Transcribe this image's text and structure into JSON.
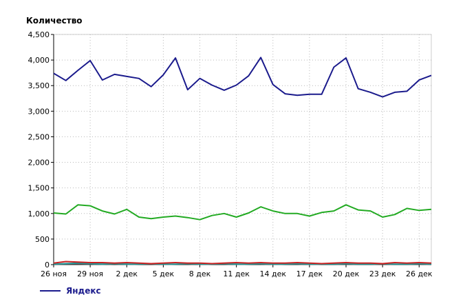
{
  "chart_data": {
    "type": "line",
    "title": "",
    "ylabel": "Количество",
    "xlabel": "",
    "ylim": [
      0,
      4500
    ],
    "yticks": [
      "0",
      "500",
      "1,000",
      "1,500",
      "2,000",
      "2,500",
      "3,000",
      "3,500",
      "4,000",
      "4,500"
    ],
    "ytick_values": [
      0,
      500,
      1000,
      1500,
      2000,
      2500,
      3000,
      3500,
      4000,
      4500
    ],
    "x": [
      "26 ноя",
      "27 ноя",
      "28 ноя",
      "29 ноя",
      "30 ноя",
      "1 дек",
      "2 дек",
      "3 дек",
      "4 дек",
      "5 дек",
      "6 дек",
      "7 дек",
      "8 дек",
      "9 дек",
      "10 дек",
      "11 дек",
      "12 дек",
      "13 дек",
      "14 дек",
      "15 дек",
      "16 дек",
      "17 дек",
      "18 дек",
      "19 дек",
      "20 дек",
      "21 дек",
      "22 дек",
      "23 дек",
      "24 дек",
      "25 дек",
      "26 дек",
      "27 дек"
    ],
    "xtick_labels": [
      "26 ноя",
      "29 ноя",
      "2 дек",
      "5 дек",
      "8 дек",
      "11 дек",
      "14 дек",
      "17 дек",
      "20 дек",
      "23 дек",
      "26 дек"
    ],
    "xtick_indices": [
      0,
      3,
      6,
      9,
      12,
      15,
      18,
      21,
      24,
      27,
      30
    ],
    "grid": true,
    "legend_position": "bottom-left",
    "series": [
      {
        "name": "Яндекс",
        "color": "#1a1a8c",
        "values": [
          3740,
          3600,
          3800,
          3990,
          3610,
          3720,
          3680,
          3640,
          3480,
          3710,
          4040,
          3420,
          3640,
          3510,
          3410,
          3510,
          3690,
          4050,
          3520,
          3340,
          3310,
          3330,
          3330,
          3860,
          4040,
          3440,
          3370,
          3280,
          3370,
          3390,
          3610,
          3700
        ]
      },
      {
        "name": "",
        "color": "#22aa22",
        "values": [
          1010,
          990,
          1170,
          1150,
          1050,
          990,
          1080,
          930,
          900,
          930,
          950,
          920,
          880,
          960,
          1000,
          930,
          1010,
          1130,
          1050,
          1000,
          1000,
          950,
          1020,
          1050,
          1170,
          1070,
          1050,
          930,
          980,
          1100,
          1060,
          1080
        ]
      },
      {
        "name": "",
        "color": "#cc2222",
        "values": [
          30,
          60,
          50,
          40,
          40,
          30,
          40,
          30,
          20,
          30,
          40,
          30,
          30,
          20,
          30,
          40,
          30,
          40,
          30,
          30,
          40,
          30,
          20,
          30,
          40,
          30,
          30,
          20,
          40,
          30,
          40,
          30
        ]
      },
      {
        "name": "",
        "color": "#229999",
        "values": [
          10,
          20,
          30,
          20,
          10,
          20,
          10,
          10,
          20,
          10,
          10,
          20,
          10,
          10,
          20,
          10,
          10,
          20,
          10,
          10,
          20,
          10,
          10,
          10,
          20,
          10,
          10,
          20,
          10,
          10,
          20,
          10
        ]
      },
      {
        "name": "",
        "color": "#444444",
        "values": [
          5,
          10,
          10,
          5,
          10,
          5,
          10,
          5,
          5,
          10,
          5,
          5,
          10,
          5,
          5,
          10,
          5,
          5,
          10,
          5,
          5,
          10,
          5,
          5,
          10,
          5,
          5,
          10,
          5,
          5,
          10,
          5
        ]
      }
    ]
  }
}
